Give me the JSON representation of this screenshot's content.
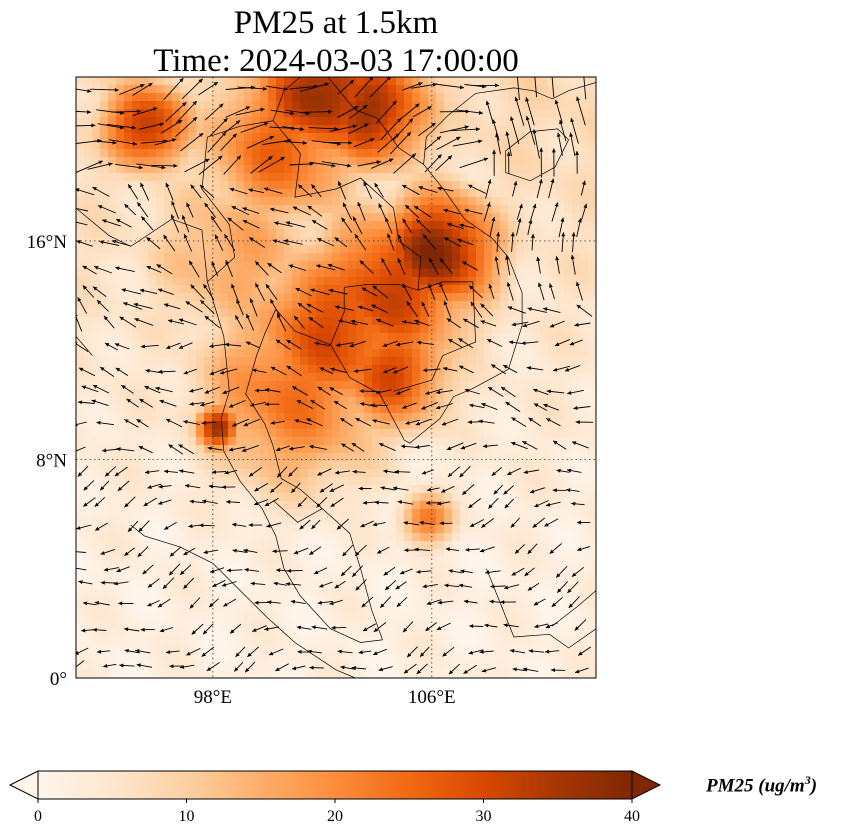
{
  "title_line1": "PM25 at 1.5km",
  "title_line2": "Time: 2024-03-03 17:00:00",
  "chart_data": {
    "type": "heatmap",
    "variable": "PM25",
    "colorbar": {
      "label_main": "PM25 (ug/m",
      "label_sup": "3",
      "label_end": ")",
      "min": 0,
      "max": 40,
      "ticks": [
        0,
        10,
        20,
        30,
        40
      ],
      "extend": "both",
      "colormap": [
        "#fff5eb",
        "#fee6ce",
        "#fdd0a2",
        "#fdae6b",
        "#fd8d3c",
        "#f16913",
        "#d94801",
        "#a63603",
        "#7f2704"
      ]
    },
    "lon_range": [
      93,
      112
    ],
    "lat_range": [
      0,
      22
    ],
    "grid": true,
    "x_ticks": [
      {
        "value": 98,
        "label": "98°E"
      },
      {
        "value": 106,
        "label": "106°E"
      }
    ],
    "y_ticks": [
      {
        "value": 0,
        "label": "0°"
      },
      {
        "value": 8,
        "label": "8°N"
      },
      {
        "value": 16,
        "label": "16°N"
      }
    ],
    "pm25_hotspots": [
      {
        "lon": 102.0,
        "lat": 21.4,
        "value": 38,
        "spread": 1.8
      },
      {
        "lon": 103.8,
        "lat": 20.8,
        "value": 36,
        "spread": 1.6
      },
      {
        "lon": 95.6,
        "lat": 20.2,
        "value": 34,
        "spread": 1.2
      },
      {
        "lon": 100.5,
        "lat": 19.5,
        "value": 26,
        "spread": 2.2
      },
      {
        "lon": 106.2,
        "lat": 15.6,
        "value": 40,
        "spread": 1.6
      },
      {
        "lon": 104.5,
        "lat": 14.2,
        "value": 32,
        "spread": 2.2
      },
      {
        "lon": 102.5,
        "lat": 12.6,
        "value": 30,
        "spread": 2.4
      },
      {
        "lon": 104.5,
        "lat": 11.2,
        "value": 30,
        "spread": 1.6
      },
      {
        "lon": 98.2,
        "lat": 9.2,
        "value": 36,
        "spread": 0.6
      },
      {
        "lon": 101.0,
        "lat": 10.5,
        "value": 24,
        "spread": 2.6
      },
      {
        "lon": 105.8,
        "lat": 5.8,
        "value": 24,
        "spread": 0.7
      },
      {
        "lon": 99.0,
        "lat": 15.5,
        "value": 16,
        "spread": 2.6
      }
    ],
    "wind_regions": [
      {
        "lat_min": 18,
        "lat_max": 22,
        "u": 1.0,
        "v": 0.35,
        "speed": 1.0
      },
      {
        "lat_min": 13,
        "lat_max": 18,
        "u": -0.7,
        "v": 0.6,
        "speed": 0.55
      },
      {
        "lat_min": 8,
        "lat_max": 13,
        "u": -1.0,
        "v": 0.1,
        "speed": 0.45
      },
      {
        "lat_min": 0,
        "lat_max": 8,
        "u": -0.9,
        "v": -0.3,
        "speed": 0.35
      }
    ]
  }
}
